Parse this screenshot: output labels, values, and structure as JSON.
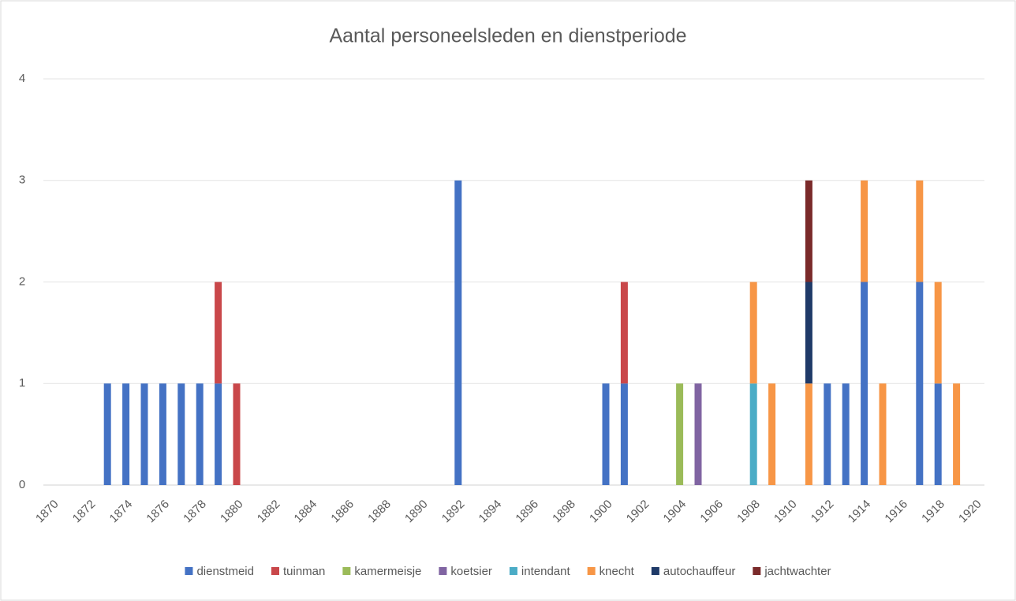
{
  "chart_data": {
    "type": "stacked_bar",
    "title": "Aantal personeelsleden en dienstperiode",
    "categories": [
      "1870",
      null,
      "1872",
      null,
      "1874",
      null,
      "1876",
      null,
      "1878",
      null,
      "1880",
      null,
      "1882",
      null,
      "1884",
      null,
      "1886",
      null,
      "1888",
      null,
      "1890",
      null,
      "1892",
      null,
      "1894",
      null,
      "1896",
      null,
      "1898",
      null,
      "1900",
      null,
      "1902",
      null,
      "1904",
      null,
      "1906",
      null,
      "1908",
      null,
      "1910",
      null,
      "1912",
      null,
      "1914",
      null,
      "1916",
      null,
      "1918",
      null,
      "1920"
    ],
    "series": [
      {
        "name": "dienstmeid",
        "color": "#4472c4",
        "values": [
          0,
          0,
          0,
          1,
          1,
          1,
          1,
          1,
          1,
          1,
          0,
          0,
          0,
          0,
          0,
          0,
          0,
          0,
          0,
          0,
          0,
          0,
          3,
          0,
          0,
          0,
          0,
          0,
          0,
          0,
          1,
          1,
          0,
          0,
          0,
          0,
          0,
          0,
          0,
          0,
          0,
          0,
          1,
          1,
          2,
          0,
          0,
          2,
          1,
          0,
          0
        ]
      },
      {
        "name": "tuinman",
        "color": "#c9474a",
        "values": [
          0,
          0,
          0,
          0,
          0,
          0,
          0,
          0,
          0,
          1,
          1,
          0,
          0,
          0,
          0,
          0,
          0,
          0,
          0,
          0,
          0,
          0,
          0,
          0,
          0,
          0,
          0,
          0,
          0,
          0,
          0,
          1,
          0,
          0,
          0,
          0,
          0,
          0,
          0,
          0,
          0,
          0,
          0,
          0,
          0,
          0,
          0,
          0,
          0,
          0,
          0
        ]
      },
      {
        "name": "kamermeisje",
        "color": "#9bbb59",
        "values": [
          0,
          0,
          0,
          0,
          0,
          0,
          0,
          0,
          0,
          0,
          0,
          0,
          0,
          0,
          0,
          0,
          0,
          0,
          0,
          0,
          0,
          0,
          0,
          0,
          0,
          0,
          0,
          0,
          0,
          0,
          0,
          0,
          0,
          0,
          1,
          0,
          0,
          0,
          0,
          0,
          0,
          0,
          0,
          0,
          0,
          0,
          0,
          0,
          0,
          0,
          0
        ]
      },
      {
        "name": "koetsier",
        "color": "#8064a2",
        "values": [
          0,
          0,
          0,
          0,
          0,
          0,
          0,
          0,
          0,
          0,
          0,
          0,
          0,
          0,
          0,
          0,
          0,
          0,
          0,
          0,
          0,
          0,
          0,
          0,
          0,
          0,
          0,
          0,
          0,
          0,
          0,
          0,
          0,
          0,
          0,
          1,
          0,
          0,
          0,
          0,
          0,
          0,
          0,
          0,
          0,
          0,
          0,
          0,
          0,
          0,
          0
        ]
      },
      {
        "name": "intendant",
        "color": "#4bacc6",
        "values": [
          0,
          0,
          0,
          0,
          0,
          0,
          0,
          0,
          0,
          0,
          0,
          0,
          0,
          0,
          0,
          0,
          0,
          0,
          0,
          0,
          0,
          0,
          0,
          0,
          0,
          0,
          0,
          0,
          0,
          0,
          0,
          0,
          0,
          0,
          0,
          0,
          0,
          0,
          1,
          0,
          0,
          0,
          0,
          0,
          0,
          0,
          0,
          0,
          0,
          0,
          0
        ]
      },
      {
        "name": "knecht",
        "color": "#f79646",
        "values": [
          0,
          0,
          0,
          0,
          0,
          0,
          0,
          0,
          0,
          0,
          0,
          0,
          0,
          0,
          0,
          0,
          0,
          0,
          0,
          0,
          0,
          0,
          0,
          0,
          0,
          0,
          0,
          0,
          0,
          0,
          0,
          0,
          0,
          0,
          0,
          0,
          0,
          0,
          1,
          1,
          0,
          1,
          0,
          0,
          1,
          1,
          0,
          1,
          1,
          1,
          0
        ]
      },
      {
        "name": "autochauffeur",
        "color": "#1f3a68",
        "values": [
          0,
          0,
          0,
          0,
          0,
          0,
          0,
          0,
          0,
          0,
          0,
          0,
          0,
          0,
          0,
          0,
          0,
          0,
          0,
          0,
          0,
          0,
          0,
          0,
          0,
          0,
          0,
          0,
          0,
          0,
          0,
          0,
          0,
          0,
          0,
          0,
          0,
          0,
          0,
          0,
          0,
          1,
          0,
          0,
          0,
          0,
          0,
          0,
          0,
          0,
          0
        ]
      },
      {
        "name": "jachtwachter",
        "color": "#7a2a2a",
        "values": [
          0,
          0,
          0,
          0,
          0,
          0,
          0,
          0,
          0,
          0,
          0,
          0,
          0,
          0,
          0,
          0,
          0,
          0,
          0,
          0,
          0,
          0,
          0,
          0,
          0,
          0,
          0,
          0,
          0,
          0,
          0,
          0,
          0,
          0,
          0,
          0,
          0,
          0,
          0,
          0,
          0,
          1,
          0,
          0,
          0,
          0,
          0,
          0,
          0,
          0,
          0
        ]
      }
    ],
    "ylim": [
      0,
      4
    ],
    "yticks": [
      0,
      1,
      2,
      3,
      4
    ],
    "grid": true,
    "legend": "bottom"
  }
}
